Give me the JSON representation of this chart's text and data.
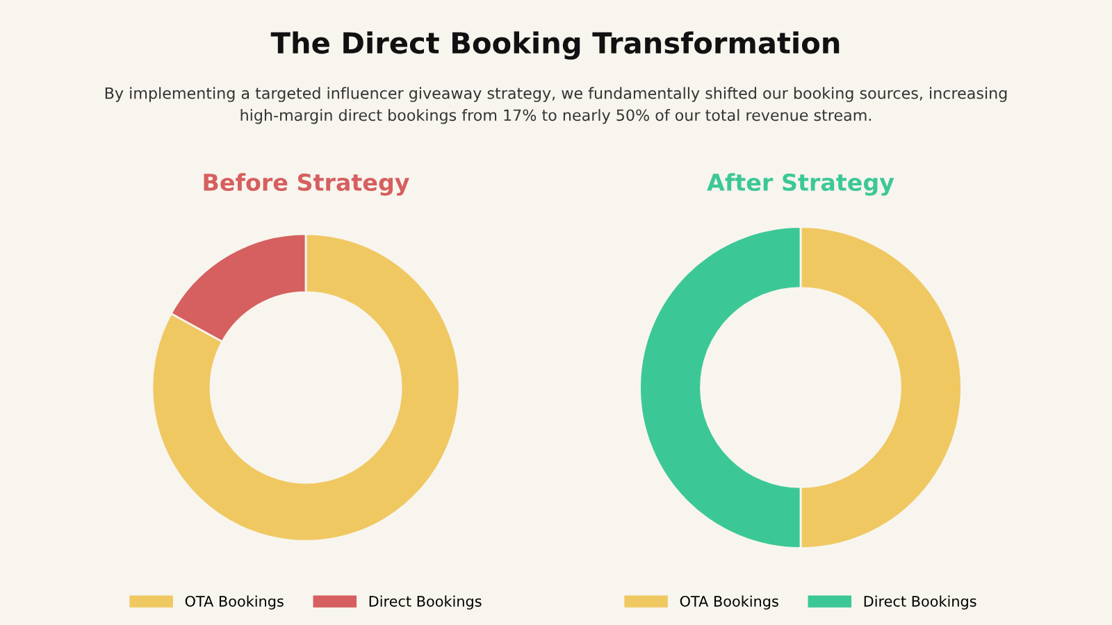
{
  "chart_data": [
    {
      "type": "other",
      "title": "The Direct Booking Transformation",
      "subtitle": "By implementing a targeted influencer giveaway strategy, we fundamentally shifted our booking sources, increasing high-margin direct bookings from 17% to nearly 50% of our total revenue stream."
    },
    {
      "type": "donut",
      "title": "Before Strategy",
      "categories": [
        "OTA Bookings",
        "Direct Bookings"
      ],
      "values": [
        83,
        17
      ],
      "colors": [
        "#f0c862",
        "#d65f5f"
      ],
      "legend": "bottom"
    },
    {
      "type": "donut",
      "title": "After Strategy",
      "categories": [
        "OTA Bookings",
        "Direct Bookings"
      ],
      "values": [
        50,
        50
      ],
      "colors": [
        "#f0c862",
        "#3cc896"
      ],
      "legend": "bottom"
    }
  ]
}
